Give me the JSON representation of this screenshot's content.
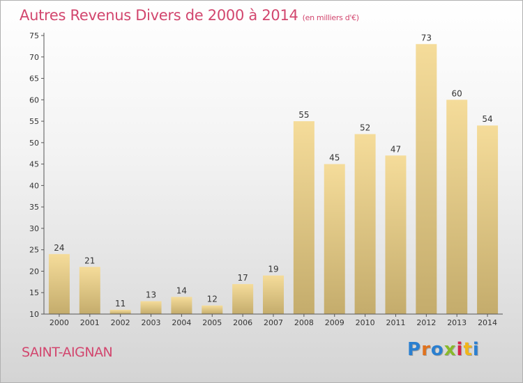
{
  "title": "Autres Revenus Divers de 2000 à 2014",
  "title_unit": "(en milliers d'€)",
  "commune": "SAINT-AIGNAN",
  "logo": {
    "text": "Proxiti",
    "colors": [
      "#2a7fd0",
      "#e0721e",
      "#2a7fd0",
      "#88b92a",
      "#d4244a",
      "#f0b51a",
      "#2a7fd0"
    ]
  },
  "colors": {
    "title": "#d2466e",
    "bar_light": "#f5dc9a",
    "bar_dark": "#c4ac6c"
  },
  "chart_data": {
    "type": "bar",
    "categories": [
      "2000",
      "2001",
      "2002",
      "2003",
      "2004",
      "2005",
      "2006",
      "2007",
      "2008",
      "2009",
      "2010",
      "2011",
      "2012",
      "2013",
      "2014"
    ],
    "values": [
      24,
      21,
      11,
      13,
      14,
      12,
      17,
      19,
      55,
      45,
      52,
      47,
      73,
      60,
      54
    ],
    "title": "Autres Revenus Divers de 2000 à 2014",
    "xlabel": "",
    "ylabel": "",
    "ylim": [
      10,
      75
    ],
    "yticks": [
      10,
      15,
      20,
      25,
      30,
      35,
      40,
      45,
      50,
      55,
      60,
      65,
      70,
      75
    ],
    "grid": false,
    "data_labels": true
  }
}
